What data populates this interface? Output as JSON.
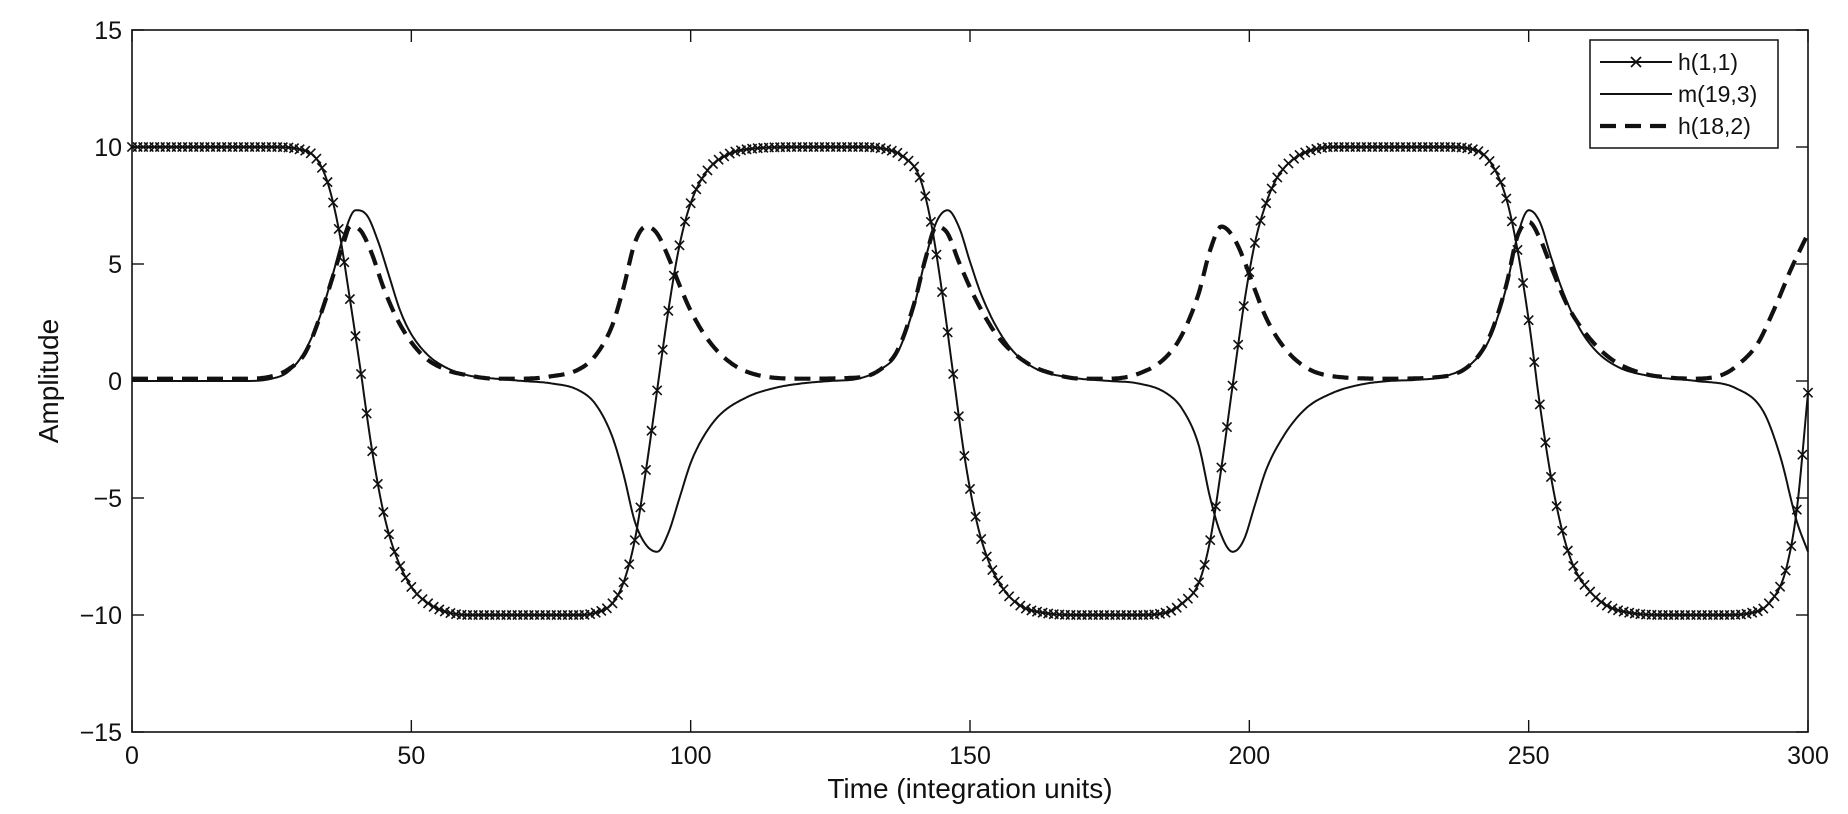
{
  "chart_data": {
    "type": "line",
    "title": "",
    "xlabel": "Time (integration units)",
    "ylabel": "Amplitude",
    "xlim": [
      0,
      300
    ],
    "ylim": [
      -15,
      15
    ],
    "xticks": [
      "0",
      "50",
      "100",
      "150",
      "200",
      "250",
      "300"
    ],
    "yticks": [
      "15",
      "10",
      "5",
      "0",
      "−5",
      "−10",
      "−15"
    ],
    "grid": false,
    "legend_position": "top-right",
    "series": [
      {
        "name": "h(1,1)",
        "style": "solid-with-x-markers",
        "color": "#111111",
        "x": [
          0,
          25,
          30,
          33,
          35,
          37,
          39,
          41,
          43,
          45,
          47,
          50,
          53,
          56,
          60,
          70,
          80,
          83,
          86,
          88,
          90,
          92,
          94,
          96,
          98,
          100,
          103,
          106,
          110,
          120,
          130,
          135,
          138,
          141,
          143,
          145,
          147,
          149,
          151,
          153,
          156,
          159,
          163,
          170,
          180,
          185,
          188,
          191,
          193,
          195,
          197,
          199,
          201,
          203,
          205,
          208,
          211,
          215,
          225,
          235,
          240,
          243,
          246,
          248,
          250,
          252,
          254,
          256,
          258,
          261,
          264,
          268,
          275,
          285,
          290,
          293,
          296,
          298,
          300
        ],
        "y": [
          10,
          10,
          9.9,
          9.5,
          8.5,
          6.5,
          3.5,
          0.3,
          -3,
          -5.6,
          -7.3,
          -8.8,
          -9.5,
          -9.85,
          -10,
          -10,
          -10,
          -9.9,
          -9.5,
          -8.6,
          -6.8,
          -3.8,
          -0.4,
          3,
          5.8,
          7.6,
          9,
          9.6,
          9.9,
          10,
          10,
          9.9,
          9.6,
          8.7,
          6.8,
          3.8,
          0.3,
          -3.2,
          -5.8,
          -7.5,
          -8.9,
          -9.6,
          -9.9,
          -10,
          -10,
          -9.9,
          -9.5,
          -8.6,
          -6.8,
          -3.7,
          -0.2,
          3.2,
          5.9,
          7.6,
          8.7,
          9.5,
          9.85,
          10,
          10,
          10,
          9.9,
          9.4,
          7.8,
          5.6,
          2.6,
          -1,
          -4.1,
          -6.4,
          -7.9,
          -9,
          -9.6,
          -9.9,
          -10,
          -10,
          -9.9,
          -9.5,
          -8.1,
          -5.5,
          -0.5
        ]
      },
      {
        "name": "m(19,3)",
        "style": "solid",
        "color": "#111111",
        "x": [
          0,
          20,
          25,
          28,
          31,
          34,
          36,
          38,
          40,
          42,
          44,
          46,
          48,
          50,
          53,
          56,
          60,
          65,
          70,
          75,
          80,
          83,
          86,
          88,
          90,
          92,
          94,
          96,
          98,
          100,
          102,
          105,
          110,
          115,
          120,
          125,
          130,
          134,
          137,
          140,
          142,
          144,
          146,
          148,
          150,
          152,
          155,
          158,
          162,
          168,
          175,
          180,
          185,
          188,
          191,
          193,
          195,
          197,
          199,
          201,
          203,
          206,
          210,
          215,
          220,
          225,
          230,
          235,
          240,
          243,
          246,
          248,
          250,
          252,
          254,
          256,
          259,
          262,
          266,
          272,
          280,
          287,
          292,
          295,
          298,
          300
        ],
        "y": [
          0,
          0,
          0.1,
          0.4,
          1.3,
          3,
          4.6,
          6.3,
          7.3,
          7.1,
          6,
          4.5,
          3,
          2,
          1.1,
          0.6,
          0.25,
          0.1,
          0,
          -0.1,
          -0.4,
          -1,
          -2.4,
          -4,
          -6,
          -7,
          -7.3,
          -6.5,
          -5,
          -3.5,
          -2.5,
          -1.5,
          -0.7,
          -0.3,
          -0.1,
          0,
          0.1,
          0.5,
          1.2,
          3.2,
          5.2,
          6.8,
          7.3,
          6.6,
          5.1,
          3.7,
          2.2,
          1.2,
          0.5,
          0.15,
          0,
          -0.1,
          -0.5,
          -1.2,
          -2.8,
          -5,
          -6.6,
          -7.3,
          -6.8,
          -5.3,
          -3.8,
          -2.4,
          -1.2,
          -0.5,
          -0.15,
          0,
          0.05,
          0.2,
          0.8,
          1.8,
          4,
          6.2,
          7.3,
          6.8,
          5.3,
          3.9,
          2.3,
          1.3,
          0.6,
          0.2,
          0,
          -0.3,
          -1.3,
          -3.2,
          -6,
          -7.3
        ]
      },
      {
        "name": "h(18,2)",
        "style": "dashed",
        "color": "#111111",
        "x": [
          0,
          20,
          25,
          28,
          31,
          34,
          36,
          38,
          39,
          41,
          43,
          45,
          48,
          52,
          56,
          60,
          65,
          70,
          75,
          80,
          83,
          86,
          88,
          90,
          92,
          94,
          96,
          98,
          100,
          103,
          106,
          110,
          120,
          130,
          134,
          137,
          140,
          142,
          144,
          146,
          148,
          151,
          155,
          160,
          165,
          170,
          175,
          180,
          185,
          188,
          191,
          193,
          195,
          197,
          199,
          201,
          203,
          206,
          210,
          215,
          225,
          235,
          240,
          243,
          246,
          248,
          250,
          252,
          254,
          257,
          261,
          265,
          270,
          275,
          280,
          285,
          288,
          291,
          294,
          297,
          300
        ],
        "y": [
          0.1,
          0.1,
          0.2,
          0.5,
          1.2,
          3,
          4.5,
          6,
          6.6,
          6.4,
          5.4,
          4,
          2.4,
          1.1,
          0.5,
          0.25,
          0.1,
          0.1,
          0.2,
          0.5,
          1.1,
          2.4,
          4,
          5.9,
          6.6,
          6.3,
          5.3,
          4.1,
          3,
          1.8,
          1,
          0.4,
          0.1,
          0.15,
          0.5,
          1.3,
          3.3,
          5.2,
          6.6,
          6.3,
          5.1,
          3.5,
          1.9,
          0.8,
          0.3,
          0.1,
          0.1,
          0.3,
          1,
          2,
          3.8,
          5.6,
          6.6,
          6.2,
          5.2,
          3.9,
          2.7,
          1.5,
          0.6,
          0.2,
          0.1,
          0.2,
          0.8,
          1.9,
          4.1,
          6.2,
          6.8,
          6.1,
          4.9,
          3.2,
          1.8,
          0.9,
          0.35,
          0.15,
          0.1,
          0.3,
          0.8,
          1.6,
          3.1,
          4.8,
          6.3
        ]
      }
    ]
  }
}
